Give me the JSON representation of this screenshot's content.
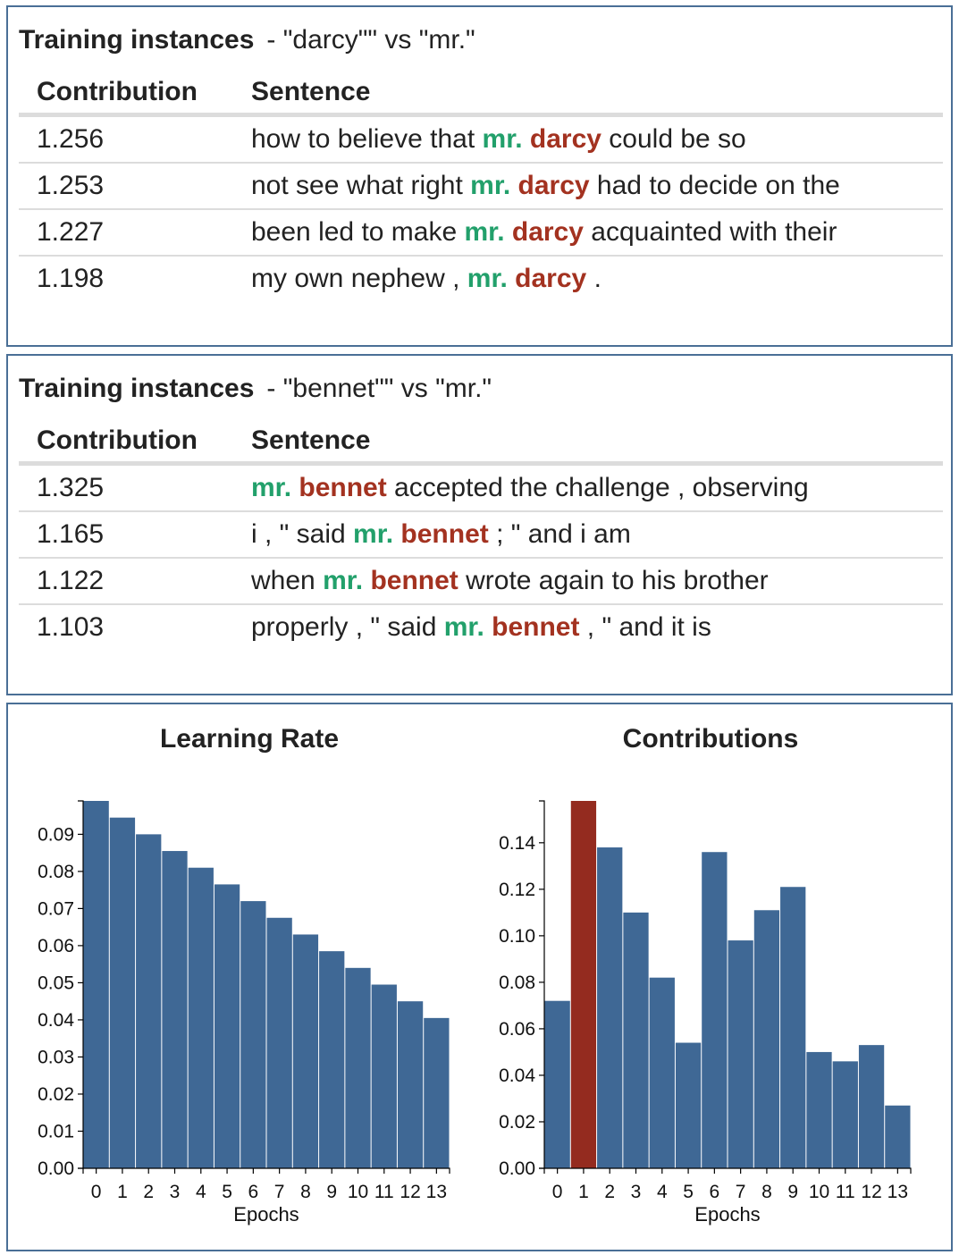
{
  "panels": [
    {
      "title_bold": "Training instances",
      "title_rest": "- \"darcy\"\" vs \"mr.\"",
      "columns": [
        "Contribution",
        "Sentence"
      ],
      "rows": [
        {
          "value": "1.256",
          "pre": "how to believe that ",
          "w1": "mr.",
          "w2": "darcy",
          "post": " could be so"
        },
        {
          "value": "1.253",
          "pre": "not see what right ",
          "w1": "mr.",
          "w2": "darcy",
          "post": " had to decide on the"
        },
        {
          "value": "1.227",
          "pre": "been led to make ",
          "w1": "mr.",
          "w2": "darcy",
          "post": " acquainted with their"
        },
        {
          "value": "1.198",
          "pre": "my own nephew , ",
          "w1": "mr.",
          "w2": "darcy",
          "post": " ."
        }
      ]
    },
    {
      "title_bold": "Training instances",
      "title_rest": "- \"bennet\"\" vs \"mr.\"",
      "columns": [
        "Contribution",
        "Sentence"
      ],
      "rows": [
        {
          "value": "1.325",
          "pre": "",
          "w1": "mr.",
          "w2": "bennet",
          "post": " accepted the challenge , observing"
        },
        {
          "value": "1.165",
          "pre": "i , \" said ",
          "w1": "mr.",
          "w2": "bennet",
          "post": " ; \" and i am"
        },
        {
          "value": "1.122",
          "pre": "when ",
          "w1": "mr.",
          "w2": "bennet",
          "post": " wrote again to his brother"
        },
        {
          "value": "1.103",
          "pre": "properly , \" said ",
          "w1": "mr.",
          "w2": "bennet",
          "post": " , \" and it is"
        }
      ]
    }
  ],
  "colors": {
    "bar": "#3f6895",
    "highlight_bar": "#942b1f",
    "word_mr": "#22a06b",
    "word_name": "#a33220",
    "border": "#4a6f96"
  },
  "chart_data": [
    {
      "type": "bar",
      "title": "Learning Rate",
      "xlabel": "Epochs",
      "ylabel": "",
      "categories": [
        "0",
        "1",
        "2",
        "3",
        "4",
        "5",
        "6",
        "7",
        "8",
        "9",
        "10",
        "11",
        "12",
        "13"
      ],
      "values": [
        0.099,
        0.0945,
        0.09,
        0.0855,
        0.081,
        0.0765,
        0.072,
        0.0675,
        0.063,
        0.0585,
        0.054,
        0.0495,
        0.045,
        0.0405
      ],
      "ylim": [
        0,
        0.099
      ],
      "yticks": [
        "0.00",
        "0.01",
        "0.02",
        "0.03",
        "0.04",
        "0.05",
        "0.06",
        "0.07",
        "0.08",
        "0.09"
      ],
      "highlight_index": null,
      "grid": false
    },
    {
      "type": "bar",
      "title": "Contributions",
      "xlabel": "Epochs",
      "ylabel": "",
      "categories": [
        "0",
        "1",
        "2",
        "3",
        "4",
        "5",
        "6",
        "7",
        "8",
        "9",
        "10",
        "11",
        "12",
        "13"
      ],
      "values": [
        0.072,
        0.158,
        0.138,
        0.11,
        0.082,
        0.054,
        0.136,
        0.098,
        0.111,
        0.121,
        0.05,
        0.046,
        0.053,
        0.027
      ],
      "ylim": [
        0,
        0.158
      ],
      "yticks": [
        "0.00",
        "0.02",
        "0.04",
        "0.06",
        "0.08",
        "0.10",
        "0.12",
        "0.14"
      ],
      "highlight_index": 1,
      "grid": false
    }
  ]
}
